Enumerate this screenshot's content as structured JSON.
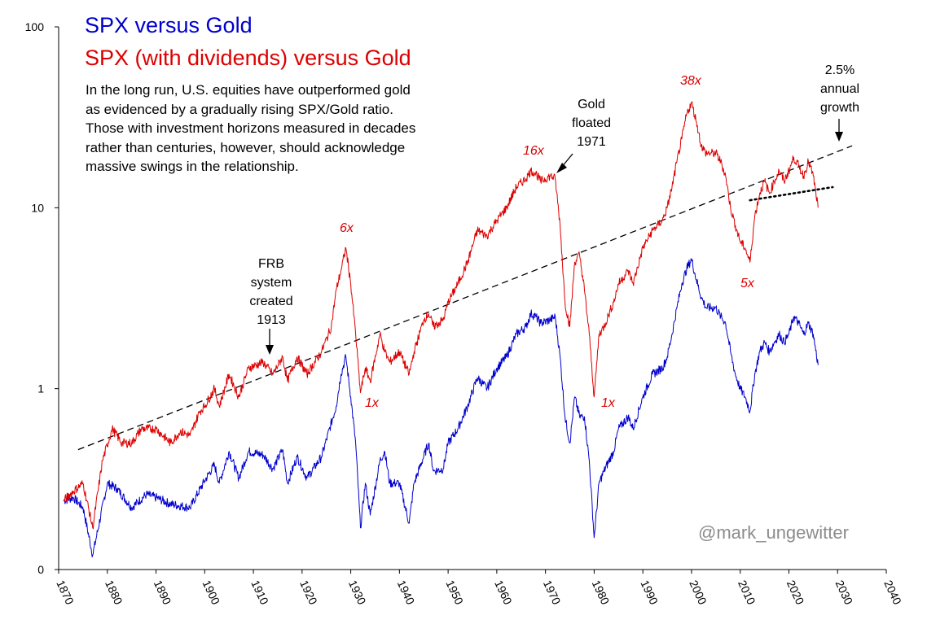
{
  "title_blue": "SPX versus Gold",
  "title_red": "SPX (with dividends) versus Gold",
  "description": [
    "In the long run, U.S. equities have outperformed gold",
    "as evidenced by a gradually rising SPX/Gold ratio.",
    "Those with investment horizons measured in decades",
    "rather than centuries, however, should acknowledge",
    "massive swings in the relationship."
  ],
  "annotations": {
    "frb": [
      "FRB",
      "system",
      "created",
      "1913"
    ],
    "gold": [
      "Gold",
      "floated",
      "1971"
    ],
    "growth": [
      "2.5%",
      "annual",
      "growth"
    ]
  },
  "multiples": {
    "m6": "6x",
    "m1a": "1x",
    "m16": "16x",
    "m1b": "1x",
    "m38": "38x",
    "m5": "5x"
  },
  "credit": "@mark_ungewitter",
  "colors": {
    "blue": "#0000cc",
    "red": "#dd0000",
    "trend": "#000000"
  },
  "chart_data": {
    "type": "line",
    "title": "SPX versus Gold / SPX (with dividends) versus Gold",
    "xlabel": "",
    "ylabel": "",
    "yscale": "log",
    "xlim": [
      1870,
      2040
    ],
    "ylim": [
      0.1,
      100
    ],
    "x_ticks": [
      "1870",
      "1880",
      "1890",
      "1900",
      "1910",
      "1920",
      "1930",
      "1940",
      "1950",
      "1960",
      "1970",
      "1980",
      "1990",
      "2000",
      "2010",
      "2020",
      "2030",
      "2040"
    ],
    "y_tick_labels": [
      "0",
      "1",
      "10",
      "100"
    ],
    "y_tick_values": [
      0.1,
      1,
      10,
      100
    ],
    "series": [
      {
        "name": "SPX versus Gold",
        "color": "#0000cc",
        "points": [
          [
            1871,
            0.24
          ],
          [
            1873,
            0.25
          ],
          [
            1875,
            0.22
          ],
          [
            1877,
            0.12
          ],
          [
            1880,
            0.3
          ],
          [
            1882,
            0.28
          ],
          [
            1885,
            0.22
          ],
          [
            1888,
            0.26
          ],
          [
            1890,
            0.25
          ],
          [
            1893,
            0.23
          ],
          [
            1897,
            0.22
          ],
          [
            1900,
            0.31
          ],
          [
            1902,
            0.38
          ],
          [
            1903,
            0.3
          ],
          [
            1905,
            0.45
          ],
          [
            1907,
            0.32
          ],
          [
            1909,
            0.45
          ],
          [
            1912,
            0.43
          ],
          [
            1914,
            0.36
          ],
          [
            1916,
            0.46
          ],
          [
            1917,
            0.3
          ],
          [
            1919,
            0.42
          ],
          [
            1921,
            0.32
          ],
          [
            1924,
            0.42
          ],
          [
            1927,
            0.8
          ],
          [
            1928,
            1.2
          ],
          [
            1929,
            1.5
          ],
          [
            1930,
            0.9
          ],
          [
            1931,
            0.5
          ],
          [
            1932,
            0.17
          ],
          [
            1933,
            0.3
          ],
          [
            1934,
            0.2
          ],
          [
            1936,
            0.4
          ],
          [
            1937,
            0.45
          ],
          [
            1938,
            0.3
          ],
          [
            1940,
            0.3
          ],
          [
            1942,
            0.18
          ],
          [
            1943,
            0.3
          ],
          [
            1946,
            0.5
          ],
          [
            1947,
            0.35
          ],
          [
            1949,
            0.36
          ],
          [
            1950,
            0.5
          ],
          [
            1952,
            0.6
          ],
          [
            1954,
            0.8
          ],
          [
            1956,
            1.15
          ],
          [
            1958,
            1.0
          ],
          [
            1960,
            1.3
          ],
          [
            1962,
            1.5
          ],
          [
            1964,
            2.0
          ],
          [
            1966,
            2.2
          ],
          [
            1967,
            2.6
          ],
          [
            1968,
            2.5
          ],
          [
            1969,
            2.3
          ],
          [
            1971,
            2.4
          ],
          [
            1972,
            2.5
          ],
          [
            1973,
            1.5
          ],
          [
            1974,
            0.7
          ],
          [
            1975,
            0.5
          ],
          [
            1976,
            0.9
          ],
          [
            1977,
            0.7
          ],
          [
            1978,
            0.7
          ],
          [
            1979,
            0.4
          ],
          [
            1980,
            0.15
          ],
          [
            1981,
            0.3
          ],
          [
            1982,
            0.35
          ],
          [
            1984,
            0.45
          ],
          [
            1985,
            0.6
          ],
          [
            1987,
            0.7
          ],
          [
            1988,
            0.6
          ],
          [
            1990,
            0.9
          ],
          [
            1992,
            1.2
          ],
          [
            1994,
            1.3
          ],
          [
            1995,
            1.5
          ],
          [
            1996,
            2.0
          ],
          [
            1997,
            2.8
          ],
          [
            1998,
            3.8
          ],
          [
            1999,
            4.6
          ],
          [
            2000,
            5.2
          ],
          [
            2001,
            4.0
          ],
          [
            2002,
            3.2
          ],
          [
            2003,
            2.8
          ],
          [
            2005,
            2.8
          ],
          [
            2006,
            2.5
          ],
          [
            2007,
            2.3
          ],
          [
            2008,
            1.6
          ],
          [
            2009,
            1.2
          ],
          [
            2010,
            1.0
          ],
          [
            2011,
            0.9
          ],
          [
            2012,
            0.75
          ],
          [
            2013,
            1.2
          ],
          [
            2014,
            1.6
          ],
          [
            2015,
            1.8
          ],
          [
            2016,
            1.6
          ],
          [
            2017,
            1.8
          ],
          [
            2018,
            2.0
          ],
          [
            2019,
            1.8
          ],
          [
            2020,
            2.0
          ],
          [
            2021,
            2.5
          ],
          [
            2022,
            2.3
          ],
          [
            2023,
            2.0
          ],
          [
            2024,
            2.3
          ],
          [
            2025,
            2.0
          ],
          [
            2026,
            1.35
          ]
        ]
      },
      {
        "name": "SPX (with dividends) versus Gold",
        "color": "#dd0000",
        "points": [
          [
            1871,
            0.24
          ],
          [
            1873,
            0.27
          ],
          [
            1875,
            0.3
          ],
          [
            1877,
            0.17
          ],
          [
            1879,
            0.4
          ],
          [
            1881,
            0.6
          ],
          [
            1883,
            0.5
          ],
          [
            1885,
            0.5
          ],
          [
            1887,
            0.6
          ],
          [
            1890,
            0.6
          ],
          [
            1893,
            0.5
          ],
          [
            1895,
            0.58
          ],
          [
            1897,
            0.55
          ],
          [
            1899,
            0.75
          ],
          [
            1900,
            0.8
          ],
          [
            1902,
            1.0
          ],
          [
            1903,
            0.8
          ],
          [
            1905,
            1.2
          ],
          [
            1907,
            0.9
          ],
          [
            1909,
            1.3
          ],
          [
            1912,
            1.4
          ],
          [
            1914,
            1.2
          ],
          [
            1916,
            1.5
          ],
          [
            1917,
            1.1
          ],
          [
            1919,
            1.5
          ],
          [
            1921,
            1.2
          ],
          [
            1924,
            1.6
          ],
          [
            1926,
            2.2
          ],
          [
            1927,
            3.5
          ],
          [
            1928,
            4.5
          ],
          [
            1929,
            6.0
          ],
          [
            1930,
            3.8
          ],
          [
            1931,
            2.0
          ],
          [
            1932,
            0.95
          ],
          [
            1933,
            1.3
          ],
          [
            1934,
            1.1
          ],
          [
            1936,
            2.0
          ],
          [
            1937,
            1.6
          ],
          [
            1938,
            1.4
          ],
          [
            1940,
            1.6
          ],
          [
            1942,
            1.2
          ],
          [
            1943,
            1.6
          ],
          [
            1945,
            2.4
          ],
          [
            1946,
            2.6
          ],
          [
            1947,
            2.2
          ],
          [
            1949,
            2.4
          ],
          [
            1950,
            3.0
          ],
          [
            1952,
            3.8
          ],
          [
            1954,
            5.0
          ],
          [
            1956,
            7.5
          ],
          [
            1958,
            7.0
          ],
          [
            1960,
            8.5
          ],
          [
            1962,
            10.0
          ],
          [
            1964,
            13.0
          ],
          [
            1966,
            14.5
          ],
          [
            1967,
            16.0
          ],
          [
            1968,
            15.5
          ],
          [
            1969,
            14.0
          ],
          [
            1971,
            15.0
          ],
          [
            1972,
            14.5
          ],
          [
            1973,
            8.0
          ],
          [
            1974,
            3.0
          ],
          [
            1975,
            2.2
          ],
          [
            1976,
            5.0
          ],
          [
            1977,
            5.5
          ],
          [
            1978,
            3.5
          ],
          [
            1979,
            2.0
          ],
          [
            1980,
            0.9
          ],
          [
            1981,
            2.0
          ],
          [
            1982,
            2.2
          ],
          [
            1984,
            3.0
          ],
          [
            1985,
            3.8
          ],
          [
            1987,
            4.5
          ],
          [
            1988,
            3.8
          ],
          [
            1990,
            6.0
          ],
          [
            1992,
            7.5
          ],
          [
            1994,
            8.5
          ],
          [
            1995,
            10.0
          ],
          [
            1996,
            13.0
          ],
          [
            1997,
            18.0
          ],
          [
            1998,
            24.0
          ],
          [
            1999,
            33.0
          ],
          [
            2000,
            38.0
          ],
          [
            2001,
            30.0
          ],
          [
            2002,
            22.0
          ],
          [
            2003,
            20.0
          ],
          [
            2005,
            20.0
          ],
          [
            2006,
            18.0
          ],
          [
            2007,
            15.0
          ],
          [
            2008,
            10.0
          ],
          [
            2009,
            8.0
          ],
          [
            2010,
            6.5
          ],
          [
            2011,
            6.0
          ],
          [
            2012,
            5.0
          ],
          [
            2013,
            9.0
          ],
          [
            2014,
            12.0
          ],
          [
            2015,
            14.0
          ],
          [
            2016,
            12.0
          ],
          [
            2017,
            14.0
          ],
          [
            2018,
            16.0
          ],
          [
            2019,
            14.0
          ],
          [
            2020,
            16.0
          ],
          [
            2021,
            19.0
          ],
          [
            2022,
            17.0
          ],
          [
            2023,
            15.0
          ],
          [
            2024,
            18.0
          ],
          [
            2025,
            15.0
          ],
          [
            2026,
            10.0
          ]
        ]
      }
    ],
    "trend_lines": [
      {
        "name": "2.5% annual growth",
        "style": "dashed",
        "points": [
          [
            1874,
            0.46
          ],
          [
            2033,
            22.0
          ]
        ]
      },
      {
        "name": "recent trend",
        "style": "dotted",
        "points": [
          [
            2012,
            11.0
          ],
          [
            2029,
            13.0
          ]
        ]
      }
    ]
  }
}
